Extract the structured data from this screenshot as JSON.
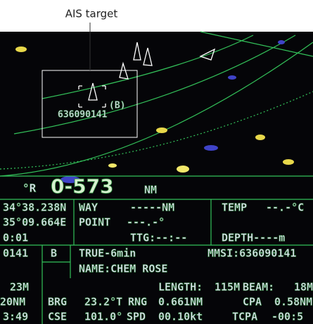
{
  "callout": {
    "label": "AIS target"
  },
  "target": {
    "class": "(B)",
    "mmsi": "636090141"
  },
  "range_display": {
    "bearing_unit": "°R",
    "value": "0-573",
    "unit": "NM"
  },
  "panel": {
    "rows": [
      [
        "34°38.238N",
        "WAY",
        "-----NM",
        "TEMP",
        "--.-°C"
      ],
      [
        "35°09.664E",
        "POINT",
        "---.-°"
      ],
      [
        "0:01",
        "TTG:--:--",
        "DEPTH----m"
      ],
      [
        "0141",
        "B",
        "TRUE-6min",
        "MMSI:636090141"
      ],
      [
        "NAME:CHEM ROSE"
      ],
      [
        "23M",
        "LENGTH:",
        "115M",
        "BEAM:",
        "18M"
      ],
      [
        "20NM",
        "BRG",
        "23.2°T",
        "RNG",
        "0.661NM",
        "CPA",
        "0.58NM"
      ],
      [
        "3:49",
        "CSE",
        "101.0°",
        "SPD",
        "00.10kt",
        "TCPA",
        "-00:5"
      ]
    ]
  }
}
